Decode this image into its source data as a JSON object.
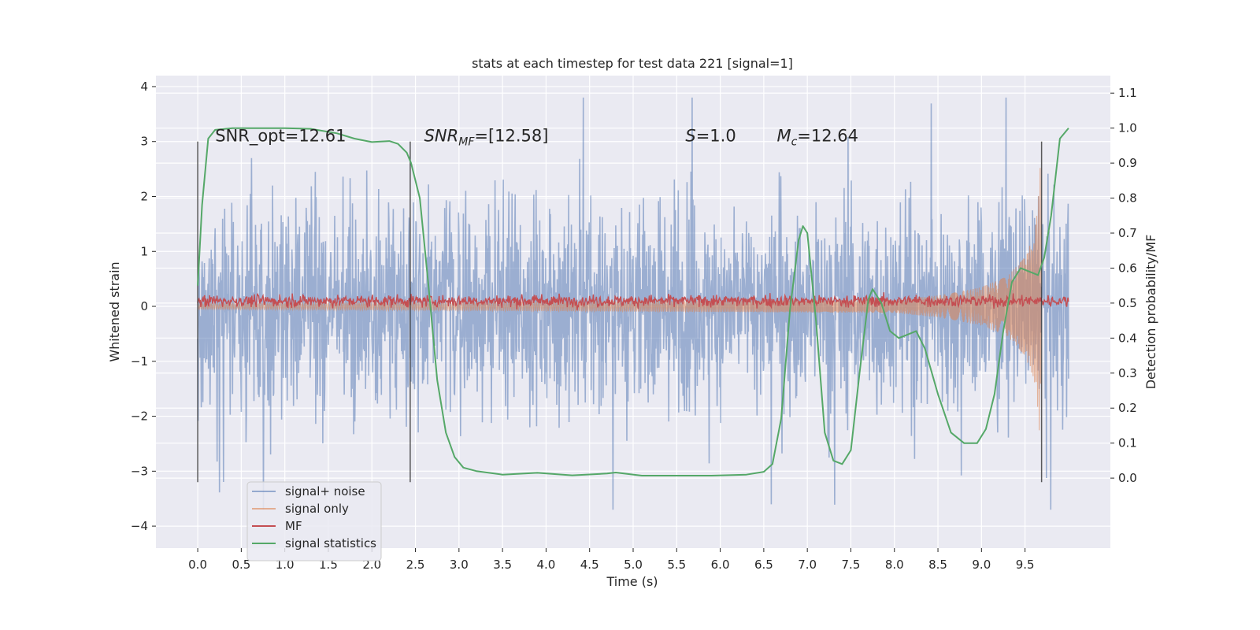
{
  "chart_data": {
    "type": "line",
    "title": "stats at each timestep for test data 221 [signal=1]",
    "xlabel": "Time (s)",
    "ylabel": "Whitened strain",
    "y2label": "Detection probability/MF",
    "xlim": [
      -0.48,
      10.48
    ],
    "ylim": [
      -4.4,
      4.2
    ],
    "y2lim": [
      -0.2,
      1.15
    ],
    "x_ticks": [
      0.0,
      0.5,
      1.0,
      1.5,
      2.0,
      2.5,
      3.0,
      3.5,
      4.0,
      4.5,
      5.0,
      5.5,
      6.0,
      6.5,
      7.0,
      7.5,
      8.0,
      8.5,
      9.0,
      9.5
    ],
    "x_tick_labels": [
      "0.0",
      "0.5",
      "1.0",
      "1.5",
      "2.0",
      "2.5",
      "3.0",
      "3.5",
      "4.0",
      "4.5",
      "5.0",
      "5.5",
      "6.0",
      "6.5",
      "7.0",
      "7.5",
      "8.0",
      "8.5",
      "9.0",
      "9.5"
    ],
    "y_ticks": [
      -4,
      -3,
      -2,
      -1,
      0,
      1,
      2,
      3,
      4
    ],
    "y_tick_labels": [
      "−4",
      "−3",
      "−2",
      "−1",
      "0",
      "1",
      "2",
      "3",
      "4"
    ],
    "y2_ticks": [
      0.0,
      0.1,
      0.2,
      0.3,
      0.4,
      0.5,
      0.6,
      0.7,
      0.8,
      0.9,
      1.0,
      1.1
    ],
    "y2_tick_labels": [
      "0.0",
      "0.1",
      "0.2",
      "0.3",
      "0.4",
      "0.5",
      "0.6",
      "0.7",
      "0.8",
      "0.9",
      "1.0",
      "1.1"
    ],
    "grid": true,
    "legend_position": "lower-left",
    "series": [
      {
        "name": "signal+ noise",
        "color": "#4c72b0",
        "axis": "left",
        "x_range": [
          0.0,
          10.0
        ],
        "envelope_typical": [
          -1.5,
          1.7
        ],
        "extremes": [
          -3.7,
          3.8
        ]
      },
      {
        "name": "signal only",
        "color": "#dd8452",
        "axis": "left",
        "x": [
          0.0,
          8.0,
          8.5,
          9.0,
          9.3,
          9.5,
          9.6,
          9.65,
          9.68
        ],
        "amplitude": [
          0.05,
          0.12,
          0.2,
          0.35,
          0.55,
          0.9,
          1.3,
          1.9,
          2.7
        ]
      },
      {
        "name": "MF",
        "color": "#c44e52",
        "axis": "left",
        "x_range": [
          0.0,
          10.0
        ],
        "level": 0.1,
        "spread": 0.12
      },
      {
        "name": "signal statistics",
        "color": "#55a868",
        "axis": "right",
        "x": [
          0.0,
          0.05,
          0.12,
          0.2,
          0.4,
          0.7,
          1.0,
          1.3,
          1.6,
          1.8,
          2.0,
          2.2,
          2.3,
          2.4,
          2.45,
          2.55,
          2.65,
          2.75,
          2.85,
          2.95,
          3.05,
          3.2,
          3.5,
          3.9,
          4.3,
          4.7,
          4.8,
          5.1,
          5.5,
          5.9,
          6.3,
          6.5,
          6.6,
          6.7,
          6.8,
          6.9,
          6.95,
          7.0,
          7.1,
          7.2,
          7.3,
          7.4,
          7.5,
          7.6,
          7.7,
          7.75,
          7.85,
          7.95,
          8.05,
          8.15,
          8.25,
          8.35,
          8.5,
          8.65,
          8.8,
          8.95,
          9.05,
          9.15,
          9.25,
          9.35,
          9.45,
          9.55,
          9.65,
          9.72,
          9.8,
          9.9,
          10.0
        ],
        "values": [
          0.55,
          0.78,
          0.97,
          0.995,
          1.0,
          1.0,
          1.0,
          0.998,
          0.985,
          0.97,
          0.96,
          0.963,
          0.955,
          0.93,
          0.9,
          0.8,
          0.55,
          0.28,
          0.13,
          0.06,
          0.03,
          0.02,
          0.01,
          0.015,
          0.008,
          0.013,
          0.016,
          0.007,
          0.007,
          0.007,
          0.01,
          0.018,
          0.04,
          0.17,
          0.48,
          0.68,
          0.72,
          0.7,
          0.45,
          0.13,
          0.05,
          0.04,
          0.08,
          0.3,
          0.51,
          0.54,
          0.5,
          0.42,
          0.4,
          0.41,
          0.42,
          0.37,
          0.24,
          0.13,
          0.1,
          0.1,
          0.14,
          0.24,
          0.42,
          0.56,
          0.6,
          0.59,
          0.58,
          0.63,
          0.75,
          0.97,
          1.0
        ]
      },
      {
        "name": "",
        "color": "#333333",
        "axis": "left",
        "kind": "vlines",
        "x": [
          0.0,
          2.44,
          9.69
        ],
        "y_range": [
          -3.2,
          3.0
        ]
      }
    ],
    "annotations": [
      {
        "id": "snr_opt",
        "text_plain": "SNR_opt=12.61",
        "x": 0.2,
        "y": 3.0
      },
      {
        "id": "snr_mf",
        "text_italic": "SNR",
        "sub": "MF",
        "text_rest": "=[12.58]",
        "x": 2.6,
        "y": 3.0
      },
      {
        "id": "s",
        "text_italic": "S",
        "text_rest": "=1.0",
        "x": 5.6,
        "y": 3.0
      },
      {
        "id": "mc",
        "text_italic": "M",
        "sub": "c",
        "text_rest": "=12.64",
        "x": 6.65,
        "y": 3.0
      }
    ]
  }
}
